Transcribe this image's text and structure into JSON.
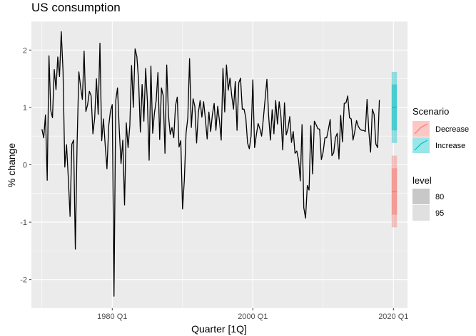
{
  "chart_data": {
    "type": "line",
    "title": "US consumption",
    "xlabel": "Quarter [1Q]",
    "ylabel": "% change",
    "x_ticks": [
      {
        "label": "1980 Q1",
        "year": 1980.0
      },
      {
        "label": "2000 Q1",
        "year": 2000.0
      },
      {
        "label": "2020 Q1",
        "year": 2020.0
      }
    ],
    "y_ticks": [
      2,
      1,
      0,
      -1,
      -2
    ],
    "xlim": [
      1968.5,
      2022.0
    ],
    "ylim": [
      -2.5,
      2.5
    ],
    "series": [
      {
        "color": "#000000",
        "start_quarter": "1970 Q1",
        "values": [
          0.62,
          0.47,
          0.87,
          -0.27,
          1.9,
          0.95,
          0.82,
          1.66,
          1.31,
          1.88,
          1.54,
          2.32,
          1.63,
          -0.04,
          0.35,
          -0.23,
          -0.9,
          0.36,
          0.43,
          -1.47,
          0.37,
          1.62,
          1.36,
          1.14,
          1.98,
          0.93,
          1.05,
          1.28,
          1.2,
          0.54,
          0.81,
          1.5,
          0.88,
          2.12,
          0.42,
          0.8,
          0.34,
          -0.07,
          0.68,
          0.94,
          1.05,
          -2.29,
          1.12,
          1.34,
          0.61,
          0.02,
          0.43,
          -0.7,
          0.73,
          0.3,
          0.68,
          1.73,
          1.0,
          2.02,
          1.89,
          1.47,
          0.57,
          1.4,
          0.76,
          1.68,
          1.11,
          0.08,
          1.72,
          0.55,
          0.9,
          1.12,
          1.61,
          0.44,
          1.34,
          1.2,
          0.2,
          1.74,
          0.86,
          0.53,
          0.65,
          0.47,
          1.03,
          1.18,
          0.31,
          0.42,
          -0.77,
          -0.28,
          0.55,
          0.82,
          1.85,
          0.65,
          1.15,
          1.02,
          0.38,
          0.91,
          1.12,
          0.83,
          1.1,
          0.8,
          0.45,
          0.92,
          0.58,
          0.88,
          1.07,
          0.6,
          1.02,
          0.77,
          0.43,
          1.68,
          0.92,
          1.74,
          1.3,
          1.51,
          1.2,
          0.97,
          1.45,
          0.6,
          1.43,
          1.51,
          0.97,
          0.97,
          0.82,
          0.38,
          0.28,
          0.5,
          1.48,
          0.3,
          0.52,
          0.72,
          0.63,
          0.5,
          0.81,
          1.15,
          1.49,
          0.85,
          0.43,
          0.96,
          0.54,
          1.12,
          0.71,
          1.1,
          0.84,
          0.26,
          1.08,
          0.52,
          0.63,
          0.84,
          0.39,
          0.58,
          0.2,
          0.24,
          0.09,
          -0.28,
          0.7,
          -0.75,
          -0.93,
          -0.36,
          -0.44,
          0.68,
          -0.16,
          0.76,
          0.7,
          0.63,
          0.62,
          0.09,
          0.22,
          0.47,
          0.47,
          0.62,
          0.79,
          0.16,
          0.21,
          0.47,
          0.55,
          0.1,
          0.86,
          0.4,
          1.07,
          1.08,
          1.2,
          0.82,
          0.8,
          0.43,
          0.58,
          0.77,
          0.67,
          0.62,
          0.6,
          0.6,
          0.58,
          1.14,
          0.58,
          0.22,
          0.97,
          0.88,
          0.36,
          0.3,
          1.13
        ],
        "bands": [],
        "points": []
      }
    ],
    "scenarios": [
      {
        "name": "Decrease",
        "color": "#F8766D",
        "mean": -0.47,
        "interval_80": [
          -0.87,
          -0.06
        ],
        "interval_95": [
          -1.09,
          0.16
        ]
      },
      {
        "name": "Increase",
        "color": "#00BFC4",
        "mean": 1.0,
        "interval_80": [
          0.6,
          1.4
        ],
        "interval_95": [
          0.38,
          1.62
        ]
      }
    ],
    "forecast_quarters": [
      "2019 Q4",
      "2020 Q1",
      "2020 Q2",
      "2020 Q3"
    ],
    "legend": {
      "placement": "right",
      "scenario_title": "Scenario",
      "scenario_items": [
        "Decrease",
        "Increase"
      ],
      "level_title": "level",
      "level_items": [
        "80",
        "95"
      ]
    },
    "grid": true,
    "panel_color": "#EBEBEB"
  }
}
